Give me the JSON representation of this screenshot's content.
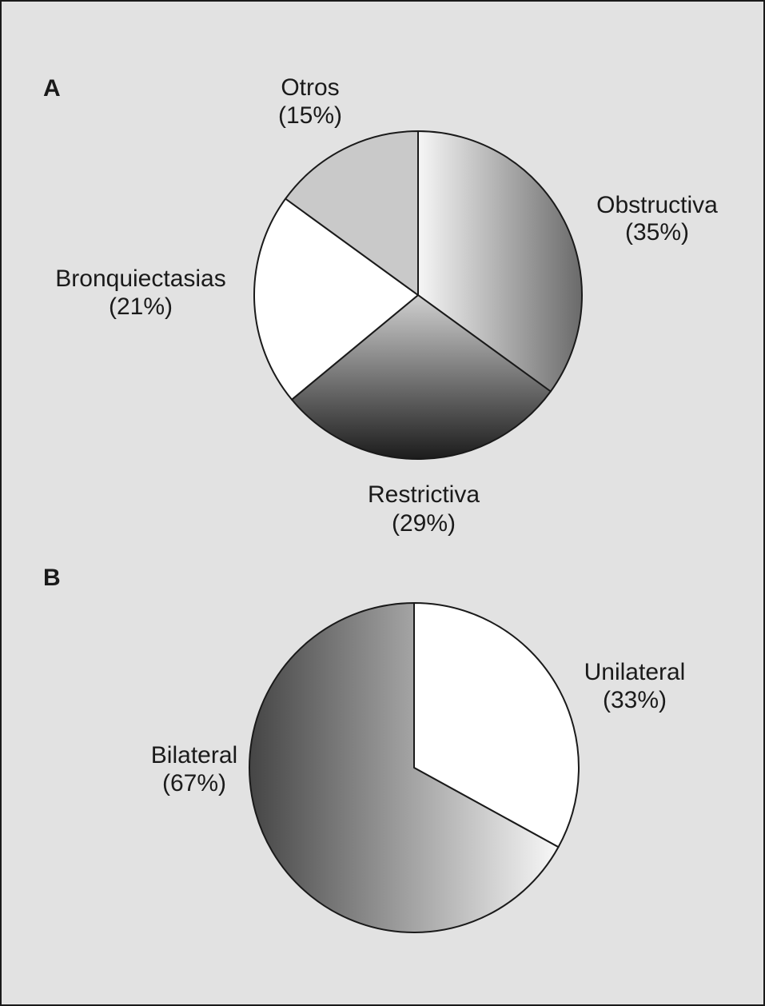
{
  "chart_data": [
    {
      "type": "pie",
      "panel": "A",
      "slices": [
        {
          "label": "Obstructiva",
          "value": 35,
          "value_label": "(35%)",
          "shading": "gradient-light-dark"
        },
        {
          "label": "Restrictiva",
          "value": 29,
          "value_label": "(29%)",
          "shading": "gradient-top-light-bottom-dark"
        },
        {
          "label": "Bronquiectasias",
          "value": 21,
          "value_label": "(21%)",
          "shading": "white"
        },
        {
          "label": "Otros",
          "value": 15,
          "value_label": "(15%)",
          "shading": "light-gray"
        }
      ],
      "start_angle_deg": 0,
      "direction": "clockwise"
    },
    {
      "type": "pie",
      "panel": "B",
      "slices": [
        {
          "label": "Unilateral",
          "value": 33,
          "value_label": "(33%)",
          "shading": "white"
        },
        {
          "label": "Bilateral",
          "value": 67,
          "value_label": "(67%)",
          "shading": "gradient-dark-light"
        }
      ],
      "start_angle_deg": 0,
      "direction": "clockwise"
    }
  ]
}
